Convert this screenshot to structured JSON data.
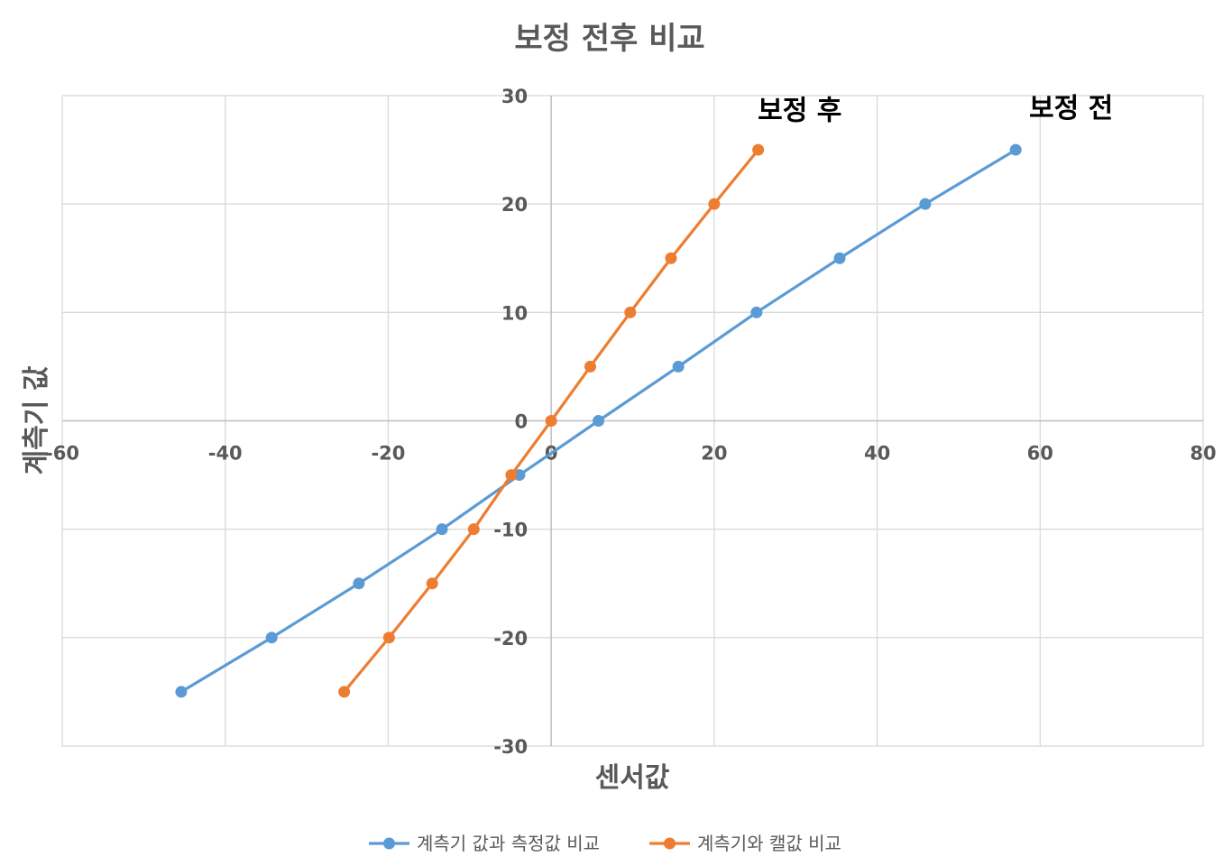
{
  "chart_data": {
    "type": "scatter",
    "title": "보정 전후 비교",
    "xlabel": "센서값",
    "ylabel": "계측기 값",
    "xlim": [
      -60,
      80
    ],
    "ylim": [
      -30,
      30
    ],
    "x_ticks": [
      -60,
      -40,
      -20,
      0,
      20,
      40,
      60,
      80
    ],
    "y_ticks": [
      -30,
      -20,
      -10,
      0,
      10,
      20,
      30
    ],
    "grid": true,
    "legend_position": "bottom",
    "series": [
      {
        "name": "계측기 값과 측정값 비교",
        "color": "#5b9bd5",
        "x": [
          -45.4,
          -34.3,
          -23.6,
          -13.4,
          -3.9,
          5.8,
          15.6,
          25.2,
          35.4,
          45.9,
          57.0
        ],
        "y": [
          -25,
          -20,
          -15,
          -10,
          -5,
          0,
          5,
          10,
          15,
          20,
          25
        ]
      },
      {
        "name": "계측기와 캘값 비교",
        "color": "#ed7d31",
        "x": [
          -25.4,
          -19.9,
          -14.6,
          -9.5,
          -4.9,
          0.0,
          4.8,
          9.7,
          14.7,
          20.0,
          25.4
        ],
        "y": [
          -25,
          -20,
          -15,
          -10,
          -5,
          0,
          5,
          10,
          15,
          20,
          25
        ]
      }
    ],
    "annotations": [
      {
        "text": "보정 후",
        "x": 30.5,
        "y": 27.8
      },
      {
        "text": "보정 전",
        "x": 63.8,
        "y": 28.0
      }
    ]
  }
}
